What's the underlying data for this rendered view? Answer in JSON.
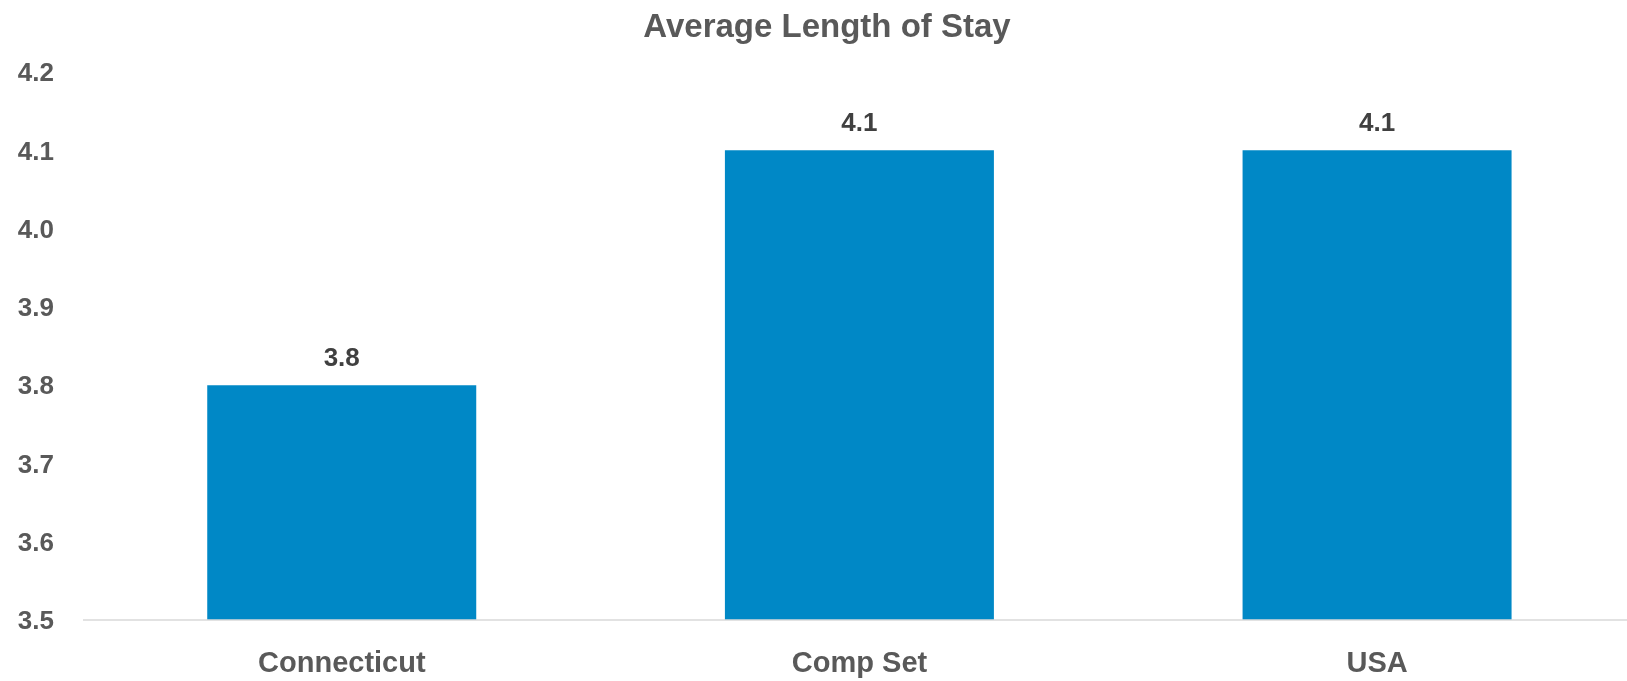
{
  "chart_data": {
    "type": "bar",
    "title": "Average Length of Stay",
    "categories": [
      "Connecticut",
      "Comp Set",
      "USA"
    ],
    "values": [
      3.8,
      4.1,
      4.1
    ],
    "color": "#0088c6",
    "ylim": [
      3.5,
      4.2
    ],
    "yticks": [
      3.5,
      3.6,
      3.7,
      3.8,
      3.9,
      {
        "value": 4,
        "label": "4.0"
      },
      4.1,
      4.2
    ],
    "data_labels": true
  }
}
